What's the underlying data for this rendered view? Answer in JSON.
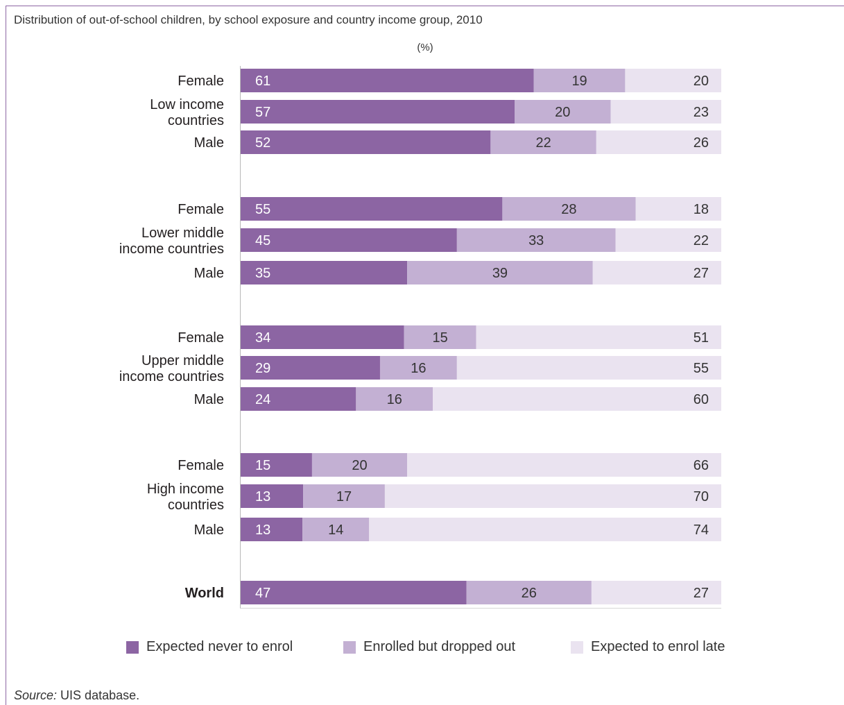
{
  "title": "Distribution of out-of-school children, by school exposure and country income group, 2010",
  "unit_label": "(%)",
  "source_prefix": "Source:",
  "source_text": " UIS database.",
  "chart_data": {
    "type": "bar",
    "orientation": "horizontal",
    "stacked": true,
    "title": "Distribution of out-of-school children, by school exposure and country income group, 2010",
    "ylabel": "(%)",
    "xlim": [
      0,
      100
    ],
    "legend_position": "bottom",
    "grid": false,
    "series": [
      {
        "name": "Expected never to enrol",
        "color": "#8c65a3"
      },
      {
        "name": "Enrolled but dropped out",
        "color": "#c3b0d3"
      },
      {
        "name": "Expected to enrol late",
        "color": "#eae3f0"
      }
    ],
    "groups": [
      {
        "label": "Low income countries",
        "label_lines": [
          "Low income",
          "countries"
        ],
        "rows": [
          {
            "label": "Female",
            "values": [
              61,
              19,
              20
            ]
          },
          {
            "label": "",
            "values": [
              57,
              20,
              23
            ]
          },
          {
            "label": "Male",
            "values": [
              52,
              22,
              26
            ]
          }
        ]
      },
      {
        "label": "Lower middle income countries",
        "label_lines": [
          "Lower middle",
          "income countries"
        ],
        "rows": [
          {
            "label": "Female",
            "values": [
              55,
              28,
              18
            ]
          },
          {
            "label": "",
            "values": [
              45,
              33,
              22
            ]
          },
          {
            "label": "Male",
            "values": [
              35,
              39,
              27
            ]
          }
        ]
      },
      {
        "label": "Upper middle income countries",
        "label_lines": [
          "Upper middle",
          "income countries"
        ],
        "rows": [
          {
            "label": "Female",
            "values": [
              34,
              15,
              51
            ]
          },
          {
            "label": "",
            "values": [
              29,
              16,
              55
            ]
          },
          {
            "label": "Male",
            "values": [
              24,
              16,
              60
            ]
          }
        ]
      },
      {
        "label": "High income countries",
        "label_lines": [
          "High income",
          "countries"
        ],
        "rows": [
          {
            "label": "Female",
            "values": [
              15,
              20,
              66
            ]
          },
          {
            "label": "",
            "values": [
              13,
              17,
              70
            ]
          },
          {
            "label": "Male",
            "values": [
              13,
              14,
              74
            ]
          }
        ]
      },
      {
        "label": "World",
        "label_lines": [
          "World"
        ],
        "bold": true,
        "rows": [
          {
            "label": "",
            "values": [
              47,
              26,
              27
            ]
          }
        ]
      }
    ]
  }
}
